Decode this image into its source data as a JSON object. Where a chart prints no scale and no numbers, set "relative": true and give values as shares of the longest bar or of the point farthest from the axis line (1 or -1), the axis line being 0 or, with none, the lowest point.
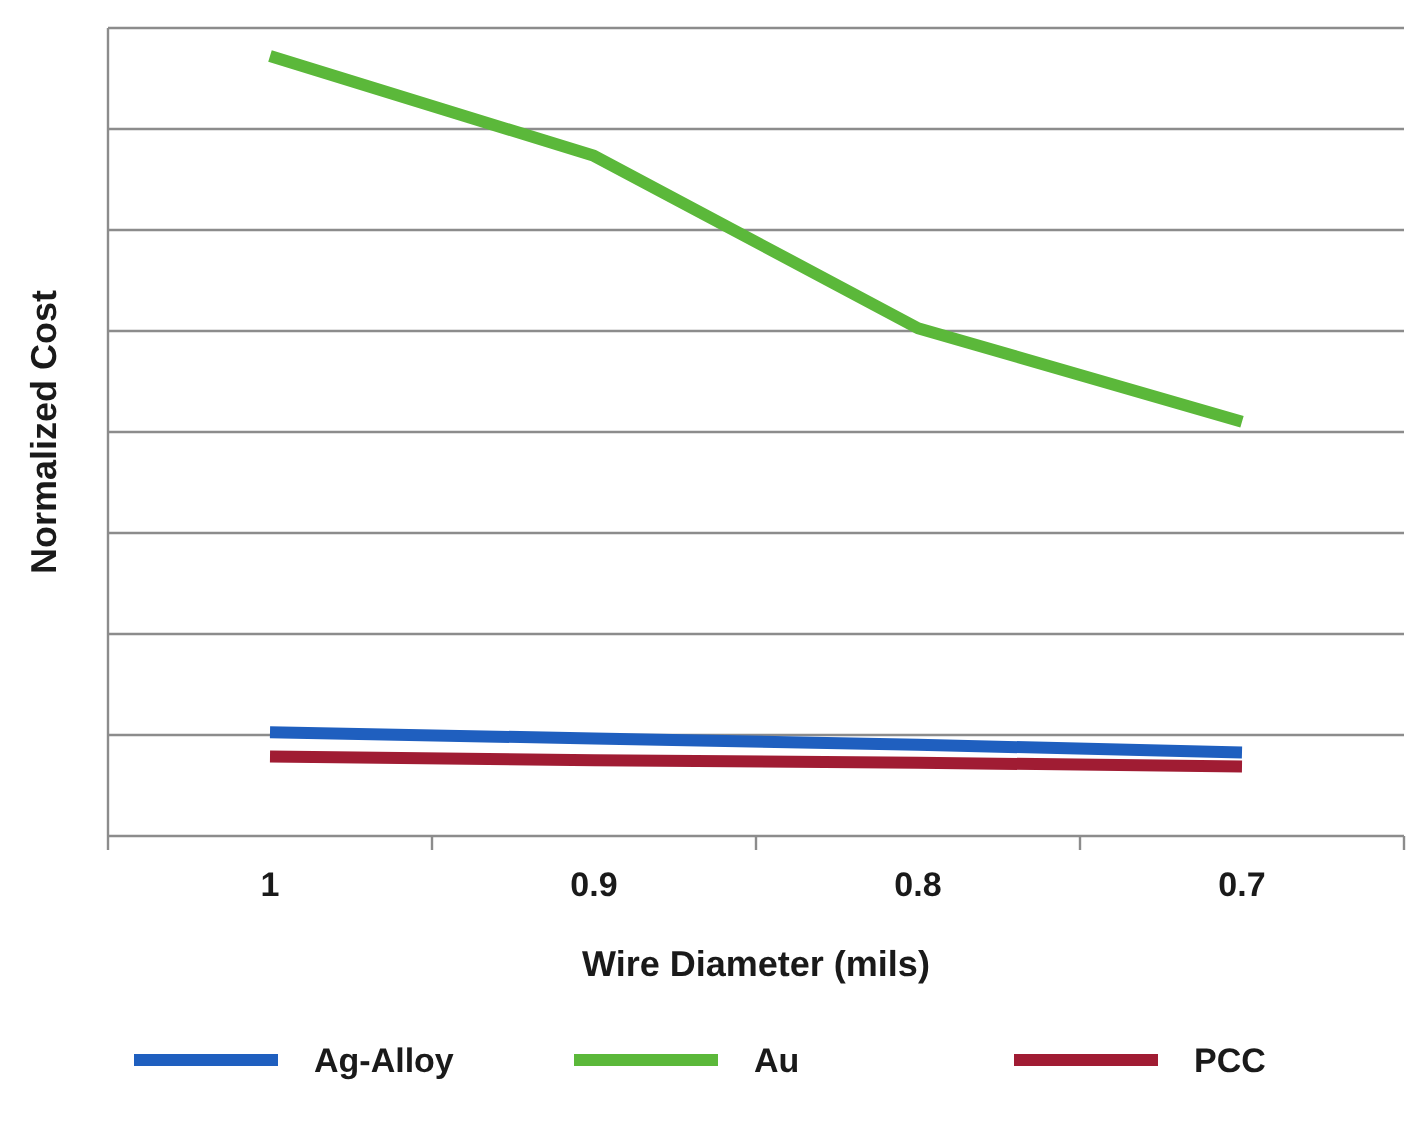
{
  "chart_data": {
    "type": "line",
    "relative": true,
    "xlabel": "Wire Diameter (mils)",
    "ylabel": "Normalized Cost",
    "categories": [
      "1",
      "0.9",
      "0.8",
      "0.7"
    ],
    "series": [
      {
        "name": "Ag-Alloy",
        "color": "#1f5fbf",
        "values": [
          0.133,
          0.125,
          0.117,
          0.107
        ]
      },
      {
        "name": "Au",
        "color": "#5bb83a",
        "values": [
          1,
          0.872,
          0.651,
          0.531
        ]
      },
      {
        "name": "PCC",
        "color": "#a01c33",
        "values": [
          0.102,
          0.097,
          0.094,
          0.089
        ]
      }
    ],
    "grid": true,
    "legend": "bottom",
    "marker": "none",
    "line_style": "solid"
  }
}
